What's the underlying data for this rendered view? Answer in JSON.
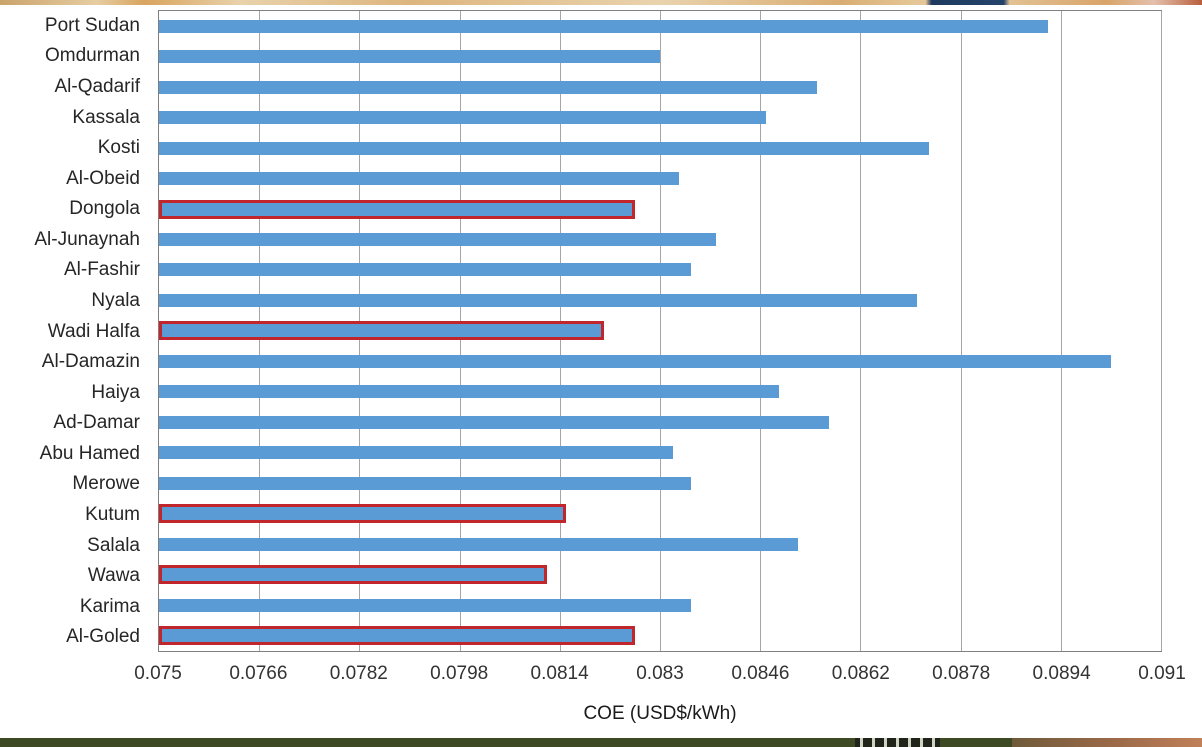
{
  "chart_data": {
    "type": "bar",
    "orientation": "horizontal",
    "title": "",
    "xlabel": "COE (USD$/kWh)",
    "ylabel": "",
    "xlim": [
      0.075,
      0.091
    ],
    "grid": true,
    "legend": false,
    "bar_color": "#5b9bd5",
    "highlight_border_color": "#c0262c",
    "x_ticks": [
      "0.075",
      "0.0766",
      "0.0782",
      "0.0798",
      "0.0814",
      "0.083",
      "0.0846",
      "0.0862",
      "0.0878",
      "0.0894",
      "0.091"
    ],
    "categories": [
      "Port Sudan",
      "Omdurman",
      "Al-Qadarif",
      "Kassala",
      "Kosti",
      "Al-Obeid",
      "Dongola",
      "Al-Junaynah",
      "Al-Fashir",
      "Nyala",
      "Wadi Halfa",
      "Al-Damazin",
      "Haiya",
      "Ad-Damar",
      "Abu Hamed",
      "Merowe",
      "Kutum",
      "Salala",
      "Wawa",
      "Karima",
      "Al-Goled"
    ],
    "values": [
      0.0892,
      0.083,
      0.0855,
      0.0847,
      0.0873,
      0.0833,
      0.0826,
      0.0839,
      0.0835,
      0.0871,
      0.0821,
      0.0902,
      0.0849,
      0.0857,
      0.0832,
      0.0835,
      0.0815,
      0.0852,
      0.0812,
      0.0835,
      0.0826
    ],
    "highlighted": [
      false,
      false,
      false,
      false,
      false,
      false,
      true,
      false,
      false,
      false,
      true,
      false,
      false,
      false,
      false,
      false,
      true,
      false,
      true,
      false,
      true
    ]
  }
}
